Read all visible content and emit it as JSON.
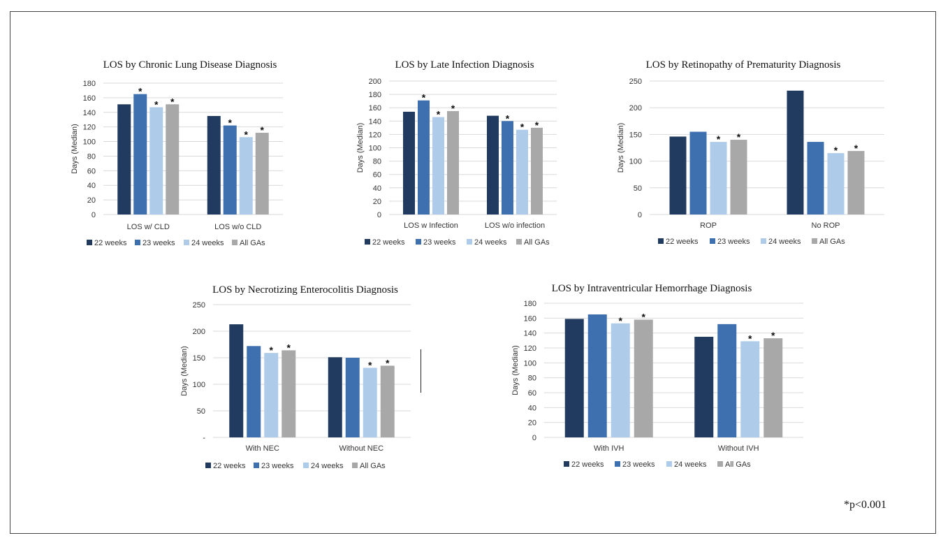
{
  "series_colors": [
    "#213a5f",
    "#3e6fae",
    "#aecbea",
    "#a8a8a8"
  ],
  "legend": [
    "22 weeks",
    "23 weeks",
    "24 weeks",
    "All GAs"
  ],
  "footnote": "*p<0.001",
  "chart_data": [
    {
      "type": "bar",
      "title": "LOS by Chronic Lung Disease Diagnosis",
      "ylabel": "Days (Median)",
      "ylim": [
        0,
        180
      ],
      "yticks": [
        0,
        20,
        40,
        60,
        80,
        100,
        120,
        140,
        160,
        180
      ],
      "ytick_labels": [
        "0",
        "20",
        "40",
        "60",
        "80",
        "100",
        "120",
        "140",
        "160",
        "180"
      ],
      "categories": [
        "LOS w/ CLD",
        "LOS w/o CLD"
      ],
      "series": [
        {
          "name": "22 weeks",
          "values": [
            151,
            135
          ],
          "sig": [
            false,
            false
          ]
        },
        {
          "name": "23 weeks",
          "values": [
            165,
            122
          ],
          "sig": [
            true,
            true
          ]
        },
        {
          "name": "24 weeks",
          "values": [
            147,
            106
          ],
          "sig": [
            true,
            true
          ]
        },
        {
          "name": "All GAs",
          "values": [
            151,
            112
          ],
          "sig": [
            true,
            true
          ]
        }
      ],
      "grid": true,
      "legend_position": "bottom"
    },
    {
      "type": "bar",
      "title": "LOS by Late Infection Diagnosis",
      "ylabel": "Days (Median)",
      "ylim": [
        0,
        200
      ],
      "yticks": [
        0,
        20,
        40,
        60,
        80,
        100,
        120,
        140,
        160,
        180,
        200
      ],
      "ytick_labels": [
        "0",
        "20",
        "40",
        "60",
        "80",
        "100",
        "120",
        "140",
        "160",
        "180",
        "200"
      ],
      "categories": [
        "LOS w Infection",
        "LOS w/o infection"
      ],
      "series": [
        {
          "name": "22 weeks",
          "values": [
            154,
            148
          ],
          "sig": [
            false,
            false
          ]
        },
        {
          "name": "23 weeks",
          "values": [
            171,
            140
          ],
          "sig": [
            true,
            true
          ]
        },
        {
          "name": "24 weeks",
          "values": [
            146,
            127
          ],
          "sig": [
            true,
            true
          ]
        },
        {
          "name": "All GAs",
          "values": [
            155,
            130
          ],
          "sig": [
            true,
            true
          ]
        }
      ],
      "grid": true,
      "legend_position": "bottom"
    },
    {
      "type": "bar",
      "title": "LOS by Retinopathy of Prematurity Diagnosis",
      "ylabel": "Days (Median)",
      "ylim": [
        0,
        250
      ],
      "yticks": [
        0,
        50,
        100,
        150,
        200,
        250
      ],
      "ytick_labels": [
        "0",
        "50",
        "100",
        "150",
        "200",
        "250"
      ],
      "categories": [
        "ROP",
        "No ROP"
      ],
      "series": [
        {
          "name": "22 weeks",
          "values": [
            146,
            232
          ],
          "sig": [
            false,
            false
          ]
        },
        {
          "name": "23 weeks",
          "values": [
            155,
            136
          ],
          "sig": [
            false,
            false
          ]
        },
        {
          "name": "24 weeks",
          "values": [
            136,
            115
          ],
          "sig": [
            true,
            true
          ]
        },
        {
          "name": "All GAs",
          "values": [
            140,
            119
          ],
          "sig": [
            true,
            true
          ]
        }
      ],
      "grid": true,
      "legend_position": "bottom"
    },
    {
      "type": "bar",
      "title": "LOS by Necrotizing Enterocolitis Diagnosis",
      "ylabel": "Days (Median)",
      "ylim": [
        0,
        250
      ],
      "yticks": [
        0,
        50,
        100,
        150,
        200,
        250
      ],
      "ytick_labels": [
        "-",
        "50",
        "100",
        "150",
        "200",
        "250"
      ],
      "categories": [
        "With NEC",
        "Without NEC"
      ],
      "series": [
        {
          "name": "22 weeks",
          "values": [
            213,
            151
          ],
          "sig": [
            false,
            false
          ]
        },
        {
          "name": "23 weeks",
          "values": [
            172,
            150
          ],
          "sig": [
            false,
            false
          ]
        },
        {
          "name": "24 weeks",
          "values": [
            159,
            131
          ],
          "sig": [
            true,
            true
          ]
        },
        {
          "name": "All GAs",
          "values": [
            164,
            135
          ],
          "sig": [
            true,
            true
          ]
        }
      ],
      "grid": true,
      "legend_position": "bottom"
    },
    {
      "type": "bar",
      "title": "LOS by Intraventricular Hemorrhage Diagnosis",
      "ylabel": "Days (Median)",
      "ylim": [
        0,
        180
      ],
      "yticks": [
        0,
        20,
        40,
        60,
        80,
        100,
        120,
        140,
        160,
        180
      ],
      "ytick_labels": [
        "0",
        "20",
        "40",
        "60",
        "80",
        "100",
        "120",
        "140",
        "160",
        "180"
      ],
      "categories": [
        "With IVH",
        "Without IVH"
      ],
      "series": [
        {
          "name": "22 weeks",
          "values": [
            159,
            135
          ],
          "sig": [
            false,
            false
          ]
        },
        {
          "name": "23 weeks",
          "values": [
            165,
            152
          ],
          "sig": [
            false,
            false
          ]
        },
        {
          "name": "24 weeks",
          "values": [
            153,
            129
          ],
          "sig": [
            true,
            true
          ]
        },
        {
          "name": "All GAs",
          "values": [
            158,
            133
          ],
          "sig": [
            true,
            true
          ]
        }
      ],
      "grid": true,
      "legend_position": "bottom"
    }
  ]
}
